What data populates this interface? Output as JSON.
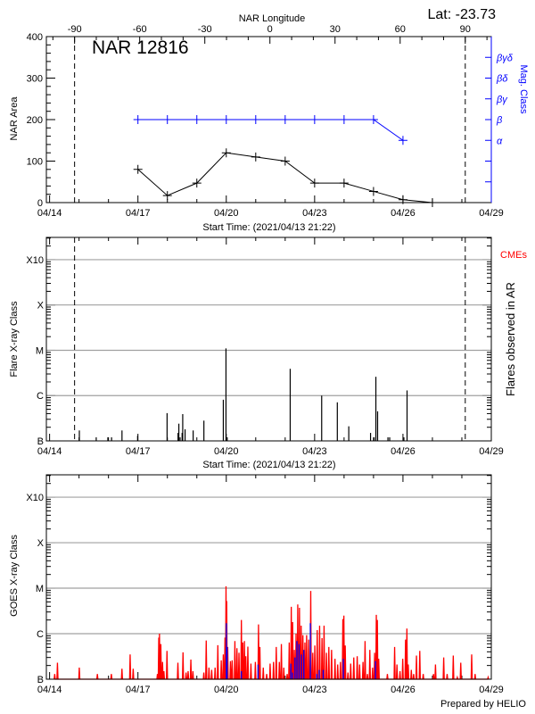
{
  "colors": {
    "axis": "#000000",
    "mag_class": "#0000ff",
    "goes_long": "#ff0000",
    "goes_short": "#0000ff",
    "cme": "#ff0000",
    "grid": "#a0a0a0"
  },
  "chart_data": [
    {
      "type": "line",
      "title": "NAR 12816",
      "lat_label": "Lat: -23.73",
      "top_axis_label": "NAR Longitude",
      "xlabel": "Start Time: (2021/04/13 21:22)",
      "ylabel": "NAR Area",
      "y2label": "Mag. Class",
      "xlim": [
        "2021-04-13T21:22",
        "2021-04-29T00:00"
      ],
      "x_tick_labels": [
        "04/14",
        "04/17",
        "04/20",
        "04/23",
        "04/26",
        "04/29"
      ],
      "ylim": [
        0,
        400
      ],
      "y_tick_labels": [
        "0",
        "100",
        "200",
        "300",
        "400"
      ],
      "top_xlim": [
        -103,
        102
      ],
      "top_tick_labels": [
        "-90",
        "-60",
        "-30",
        "0",
        "30",
        "60",
        "90"
      ],
      "limb_longitudes": [
        -90,
        90
      ],
      "y2_levels": [
        "",
        "",
        "α",
        "β",
        "βγ",
        "βδ",
        "βγδ"
      ],
      "area": {
        "x": [
          "2021-04-17T00:00",
          "2021-04-18T00:00",
          "2021-04-19T00:00",
          "2021-04-20T00:00",
          "2021-04-21T00:00",
          "2021-04-22T00:00",
          "2021-04-23T00:00",
          "2021-04-24T00:00",
          "2021-04-25T00:00",
          "2021-04-26T00:00",
          "2021-04-27T00:00"
        ],
        "y": [
          80,
          17,
          47,
          120,
          110,
          100,
          47,
          47,
          27,
          7,
          -2
        ]
      },
      "mag_class": {
        "x": [
          "2021-04-17T00:00",
          "2021-04-18T00:00",
          "2021-04-19T00:00",
          "2021-04-20T00:00",
          "2021-04-21T00:00",
          "2021-04-22T00:00",
          "2021-04-23T00:00",
          "2021-04-24T00:00",
          "2021-04-25T00:00",
          "2021-04-26T00:00"
        ],
        "y": [
          "β",
          "β",
          "β",
          "β",
          "β",
          "β",
          "β",
          "β",
          "β",
          "α"
        ]
      }
    },
    {
      "type": "bar",
      "xlabel": "Start Time: (2021/04/13 21:22)",
      "ylabel": "Flare X-ray Class",
      "y2label": "Flares observed in AR",
      "cme_label": "CMEs",
      "xlim": [
        "2021-04-13T21:22",
        "2021-04-29T00:00"
      ],
      "x_tick_labels": [
        "04/14",
        "04/17",
        "04/20",
        "04/23",
        "04/26",
        "04/29"
      ],
      "yscale": "log",
      "ylim": [
        "B1.0",
        "X31"
      ],
      "y_tick_labels": [
        "B",
        "C",
        "M",
        "X",
        "X10"
      ],
      "grid": true,
      "limb_longitudes": [
        -90,
        90
      ],
      "flares": [
        [
          "2021-04-15T00:15",
          "B1.7"
        ],
        [
          "2021-04-15T14:00",
          "B1.2"
        ],
        [
          "2021-04-15T23:30",
          "B1.2"
        ],
        [
          "2021-04-16T02:30",
          "B1.2"
        ],
        [
          "2021-04-16T11:00",
          "B1.7"
        ],
        [
          "2021-04-16T23:45",
          "B1.3"
        ],
        [
          "2021-04-17T23:45",
          "B4.1"
        ],
        [
          "2021-04-18T08:40",
          "B1.5"
        ],
        [
          "2021-04-18T09:20",
          "B2.4"
        ],
        [
          "2021-04-18T10:20",
          "B1.2"
        ],
        [
          "2021-04-18T12:00",
          "B1.5"
        ],
        [
          "2021-04-18T12:30",
          "B3.9"
        ],
        [
          "2021-04-18T14:25",
          "B1.8"
        ],
        [
          "2021-04-18T21:00",
          "B1.7"
        ],
        [
          "2021-04-19T05:45",
          "B2.8"
        ],
        [
          "2021-04-19T21:35",
          "B8.1"
        ],
        [
          "2021-04-19T23:45",
          "M1.1"
        ],
        [
          "2021-04-20T00:45",
          "B1.2"
        ],
        [
          "2021-04-22T04:05",
          "C3.9"
        ],
        [
          "2021-04-23T05:45",
          "C1.0"
        ],
        [
          "2021-04-23T18:30",
          "B7.1"
        ],
        [
          "2021-04-24T03:50",
          "B2.1"
        ],
        [
          "2021-04-24T21:35",
          "B1.5"
        ],
        [
          "2021-04-25T00:30",
          "B1.2"
        ],
        [
          "2021-04-25T01:55",
          "C2.6"
        ],
        [
          "2021-04-25T03:20",
          "B4.5"
        ],
        [
          "2021-04-25T11:45",
          "B1.2"
        ],
        [
          "2021-04-25T13:10",
          "B1.2"
        ],
        [
          "2021-04-26T00:45",
          "B1.2"
        ],
        [
          "2021-04-26T03:20",
          "C1.3"
        ]
      ]
    },
    {
      "type": "line",
      "ylabel": "GOES X-ray Class",
      "credit": "Prepared by HELIO",
      "xlim": [
        "2021-04-13T21:22",
        "2021-04-29T00:00"
      ],
      "x_tick_labels": [
        "04/14",
        "04/17",
        "04/20",
        "04/23",
        "04/26",
        "04/29"
      ],
      "yscale": "log",
      "ylim": [
        "B1.0",
        "X31"
      ],
      "y_tick_labels": [
        "B",
        "C",
        "M",
        "X",
        "X10"
      ],
      "grid": true,
      "long_channel": [
        [
          "2021-04-14T04:10",
          "B1.3"
        ],
        [
          "2021-04-14T06:24",
          "B2.3"
        ],
        [
          "2021-04-15T00:12",
          "B1.8"
        ],
        [
          "2021-04-15T14:56",
          "B1.3"
        ],
        [
          "2021-04-16T02:20",
          "B1.3"
        ],
        [
          "2021-04-16T10:58",
          "B1.7"
        ],
        [
          "2021-04-16T17:38",
          "B3.5"
        ],
        [
          "2021-04-16T20:08",
          "B1.7"
        ],
        [
          "2021-04-17T15:53",
          "B1.3"
        ],
        [
          "2021-04-17T16:59",
          "B8.2"
        ],
        [
          "2021-04-17T17:33",
          "C1.0"
        ],
        [
          "2021-04-17T18:40",
          "B5.9"
        ],
        [
          "2021-04-17T20:03",
          "B2.4"
        ],
        [
          "2021-04-17T21:10",
          "B1.5"
        ],
        [
          "2021-04-17T23:40",
          "B4.2"
        ],
        [
          "2021-04-18T08:34",
          "B2.3"
        ],
        [
          "2021-04-18T12:44",
          "B3.9"
        ],
        [
          "2021-04-18T15:14",
          "B1.4"
        ],
        [
          "2021-04-18T16:54",
          "B1.5"
        ],
        [
          "2021-04-18T19:08",
          "B2.7"
        ],
        [
          "2021-04-18T20:48",
          "B1.5"
        ],
        [
          "2021-04-19T05:42",
          "B1.4"
        ],
        [
          "2021-04-19T07:39",
          "B7.1"
        ],
        [
          "2021-04-19T09:53",
          "B1.8"
        ],
        [
          "2021-04-19T12:06",
          "B1.6"
        ],
        [
          "2021-04-19T14:53",
          "B1.8"
        ],
        [
          "2021-04-19T17:07",
          "B5.6"
        ],
        [
          "2021-04-19T19:53",
          "B2.6"
        ],
        [
          "2021-04-19T21:34",
          "B3.5"
        ],
        [
          "2021-04-19T22:57",
          "B8.2"
        ],
        [
          "2021-04-19T23:47",
          "M1.1"
        ],
        [
          "2021-04-20T00:20",
          "C5.2"
        ],
        [
          "2021-04-20T01:10",
          "B5.1"
        ],
        [
          "2021-04-20T03:24",
          "B2.5"
        ],
        [
          "2021-04-20T04:47",
          "B2.6"
        ],
        [
          "2021-04-20T07:01",
          "B6.9"
        ],
        [
          "2021-04-20T08:41",
          "B4.8"
        ],
        [
          "2021-04-20T10:21",
          "B3.8"
        ],
        [
          "2021-04-20T12:18",
          "C2.0"
        ],
        [
          "2021-04-20T13:25",
          "B6.4"
        ],
        [
          "2021-04-20T14:48",
          "B6.9"
        ],
        [
          "2021-04-20T15:55",
          "B3.2"
        ],
        [
          "2021-04-20T17:35",
          "B5.2"
        ],
        [
          "2021-04-20T20:05",
          "B2.2"
        ],
        [
          "2021-04-20T23:42",
          "B2.4"
        ],
        [
          "2021-04-21T02:16",
          "C1.6"
        ],
        [
          "2021-04-21T03:23",
          "B5.1"
        ],
        [
          "2021-04-21T06:09",
          "B1.8"
        ],
        [
          "2021-04-21T08:56",
          "B1.3"
        ],
        [
          "2021-04-21T11:43",
          "B2.2"
        ],
        [
          "2021-04-21T14:30",
          "B2.4"
        ],
        [
          "2021-04-21T16:44",
          "B5.1"
        ],
        [
          "2021-04-21T19:14",
          "B2.4"
        ],
        [
          "2021-04-21T20:54",
          "B5.9"
        ],
        [
          "2021-04-21T22:51",
          "B1.8"
        ],
        [
          "2021-04-22T01:38",
          "B1.3"
        ],
        [
          "2021-04-22T03:18",
          "B6.4"
        ],
        [
          "2021-04-22T04:58",
          "C3.9"
        ],
        [
          "2021-04-22T06:05",
          "C1.8"
        ],
        [
          "2021-04-22T07:28",
          "B4.4"
        ],
        [
          "2021-04-22T08:52",
          "C1.0"
        ],
        [
          "2021-04-22T10:15",
          "C4.4"
        ],
        [
          "2021-04-22T11:39",
          "C3.7"
        ],
        [
          "2021-04-22T13:02",
          "C1.5"
        ],
        [
          "2021-04-22T14:26",
          "B9.3"
        ],
        [
          "2021-04-22T16:06",
          "B6.4"
        ],
        [
          "2021-04-22T17:29",
          "B9.3"
        ],
        [
          "2021-04-22T19:10",
          "B7.4"
        ],
        [
          "2021-04-22T20:50",
          "C8.7"
        ],
        [
          "2021-04-22T22:30",
          "B3.8"
        ],
        [
          "2021-04-23T00:10",
          "B5.5"
        ],
        [
          "2021-04-23T02:07",
          "C1.2"
        ],
        [
          "2021-04-23T04:04",
          "C1.5"
        ],
        [
          "2021-04-23T06:01",
          "B8.0"
        ],
        [
          "2021-04-23T07:41",
          "C1.5"
        ],
        [
          "2021-04-23T09:38",
          "B3.8"
        ],
        [
          "2021-04-23T11:35",
          "B5.1"
        ],
        [
          "2021-04-23T13:49",
          "B4.4"
        ],
        [
          "2021-04-23T16:36",
          "B2.8"
        ],
        [
          "2021-04-23T18:49",
          "B2.1"
        ],
        [
          "2021-04-23T21:03",
          "B2.4"
        ],
        [
          "2021-04-23T23:00",
          "C2.1"
        ],
        [
          "2021-04-23T23:50",
          "C2.5"
        ],
        [
          "2021-04-24T00:57",
          "B5.5"
        ],
        [
          "2021-04-24T03:11",
          "B1.4"
        ],
        [
          "2021-04-24T05:24",
          "B2.2"
        ],
        [
          "2021-04-24T07:55",
          "B3.0"
        ],
        [
          "2021-04-24T10:42",
          "B3.2"
        ],
        [
          "2021-04-24T12:39",
          "B2.1"
        ],
        [
          "2021-04-24T15:26",
          "B2.4"
        ],
        [
          "2021-04-24T17:06",
          "B6.9"
        ],
        [
          "2021-04-24T19:03",
          "B1.3"
        ],
        [
          "2021-04-24T21:00",
          "B4.4"
        ],
        [
          "2021-04-24T23:14",
          "B1.8"
        ],
        [
          "2021-04-25T00:54",
          "B3.8"
        ],
        [
          "2021-04-25T02:17",
          "C2.6"
        ],
        [
          "2021-04-25T03:07",
          "C2.0"
        ],
        [
          "2021-04-25T04:14",
          "B2.8"
        ],
        [
          "2021-04-25T05:21",
          "B1.0"
        ],
        [
          "2021-04-25T11:18",
          "B1.3"
        ],
        [
          "2021-04-25T17:12",
          "B5.1"
        ],
        [
          "2021-04-25T19:06",
          "B2.1"
        ],
        [
          "2021-04-25T21:36",
          "B1.5"
        ],
        [
          "2021-04-25T23:48",
          "B2.8"
        ],
        [
          "2021-04-26T02:06",
          "B7.4"
        ],
        [
          "2021-04-26T03:12",
          "C1.3"
        ],
        [
          "2021-04-26T04:18",
          "B2.1"
        ],
        [
          "2021-04-26T06:48",
          "B1.6"
        ],
        [
          "2021-04-26T08:42",
          "B1.3"
        ],
        [
          "2021-04-26T11:00",
          "B3.3"
        ],
        [
          "2021-04-26T13:42",
          "B4.2"
        ],
        [
          "2021-04-26T16:30",
          "B1.3"
        ],
        [
          "2021-04-27T00:54",
          "B1.3"
        ],
        [
          "2021-04-27T02:30",
          "B2.1"
        ],
        [
          "2021-04-27T09:12",
          "B3.0"
        ],
        [
          "2021-04-27T12:00",
          "B1.3"
        ],
        [
          "2021-04-27T17:00",
          "B3.3"
        ],
        [
          "2021-04-27T20:18",
          "B1.1"
        ],
        [
          "2021-04-27T23:06",
          "B2.3"
        ],
        [
          "2021-04-28T08:00",
          "B3.5"
        ],
        [
          "2021-04-28T10:48",
          "B1.3"
        ],
        [
          "2021-04-28T21:24",
          "B1.1"
        ]
      ],
      "short_channel": [
        [
          "2021-04-20T00:06",
          "C1.7"
        ],
        [
          "2021-04-20T00:40",
          "B5.1"
        ],
        [
          "2021-04-20T12:18",
          "B1.5"
        ],
        [
          "2021-04-21T01:54",
          "B2.1"
        ],
        [
          "2021-04-22T04:36",
          "B2.2"
        ],
        [
          "2021-04-22T06:00",
          "B1.4"
        ],
        [
          "2021-04-22T08:00",
          "B3.0"
        ],
        [
          "2021-04-22T09:36",
          "B6.9"
        ],
        [
          "2021-04-22T11:18",
          "B5.9"
        ],
        [
          "2021-04-22T13:12",
          "B3.5"
        ],
        [
          "2021-04-22T15:12",
          "B4.4"
        ],
        [
          "2021-04-22T20:30",
          "C1.7"
        ],
        [
          "2021-04-23T01:48",
          "B1.3"
        ],
        [
          "2021-04-23T03:42",
          "B1.6"
        ],
        [
          "2021-04-23T07:00",
          "B1.6"
        ],
        [
          "2021-04-23T23:24",
          "B2.8"
        ],
        [
          "2021-04-25T01:36",
          "B2.5"
        ]
      ]
    }
  ]
}
